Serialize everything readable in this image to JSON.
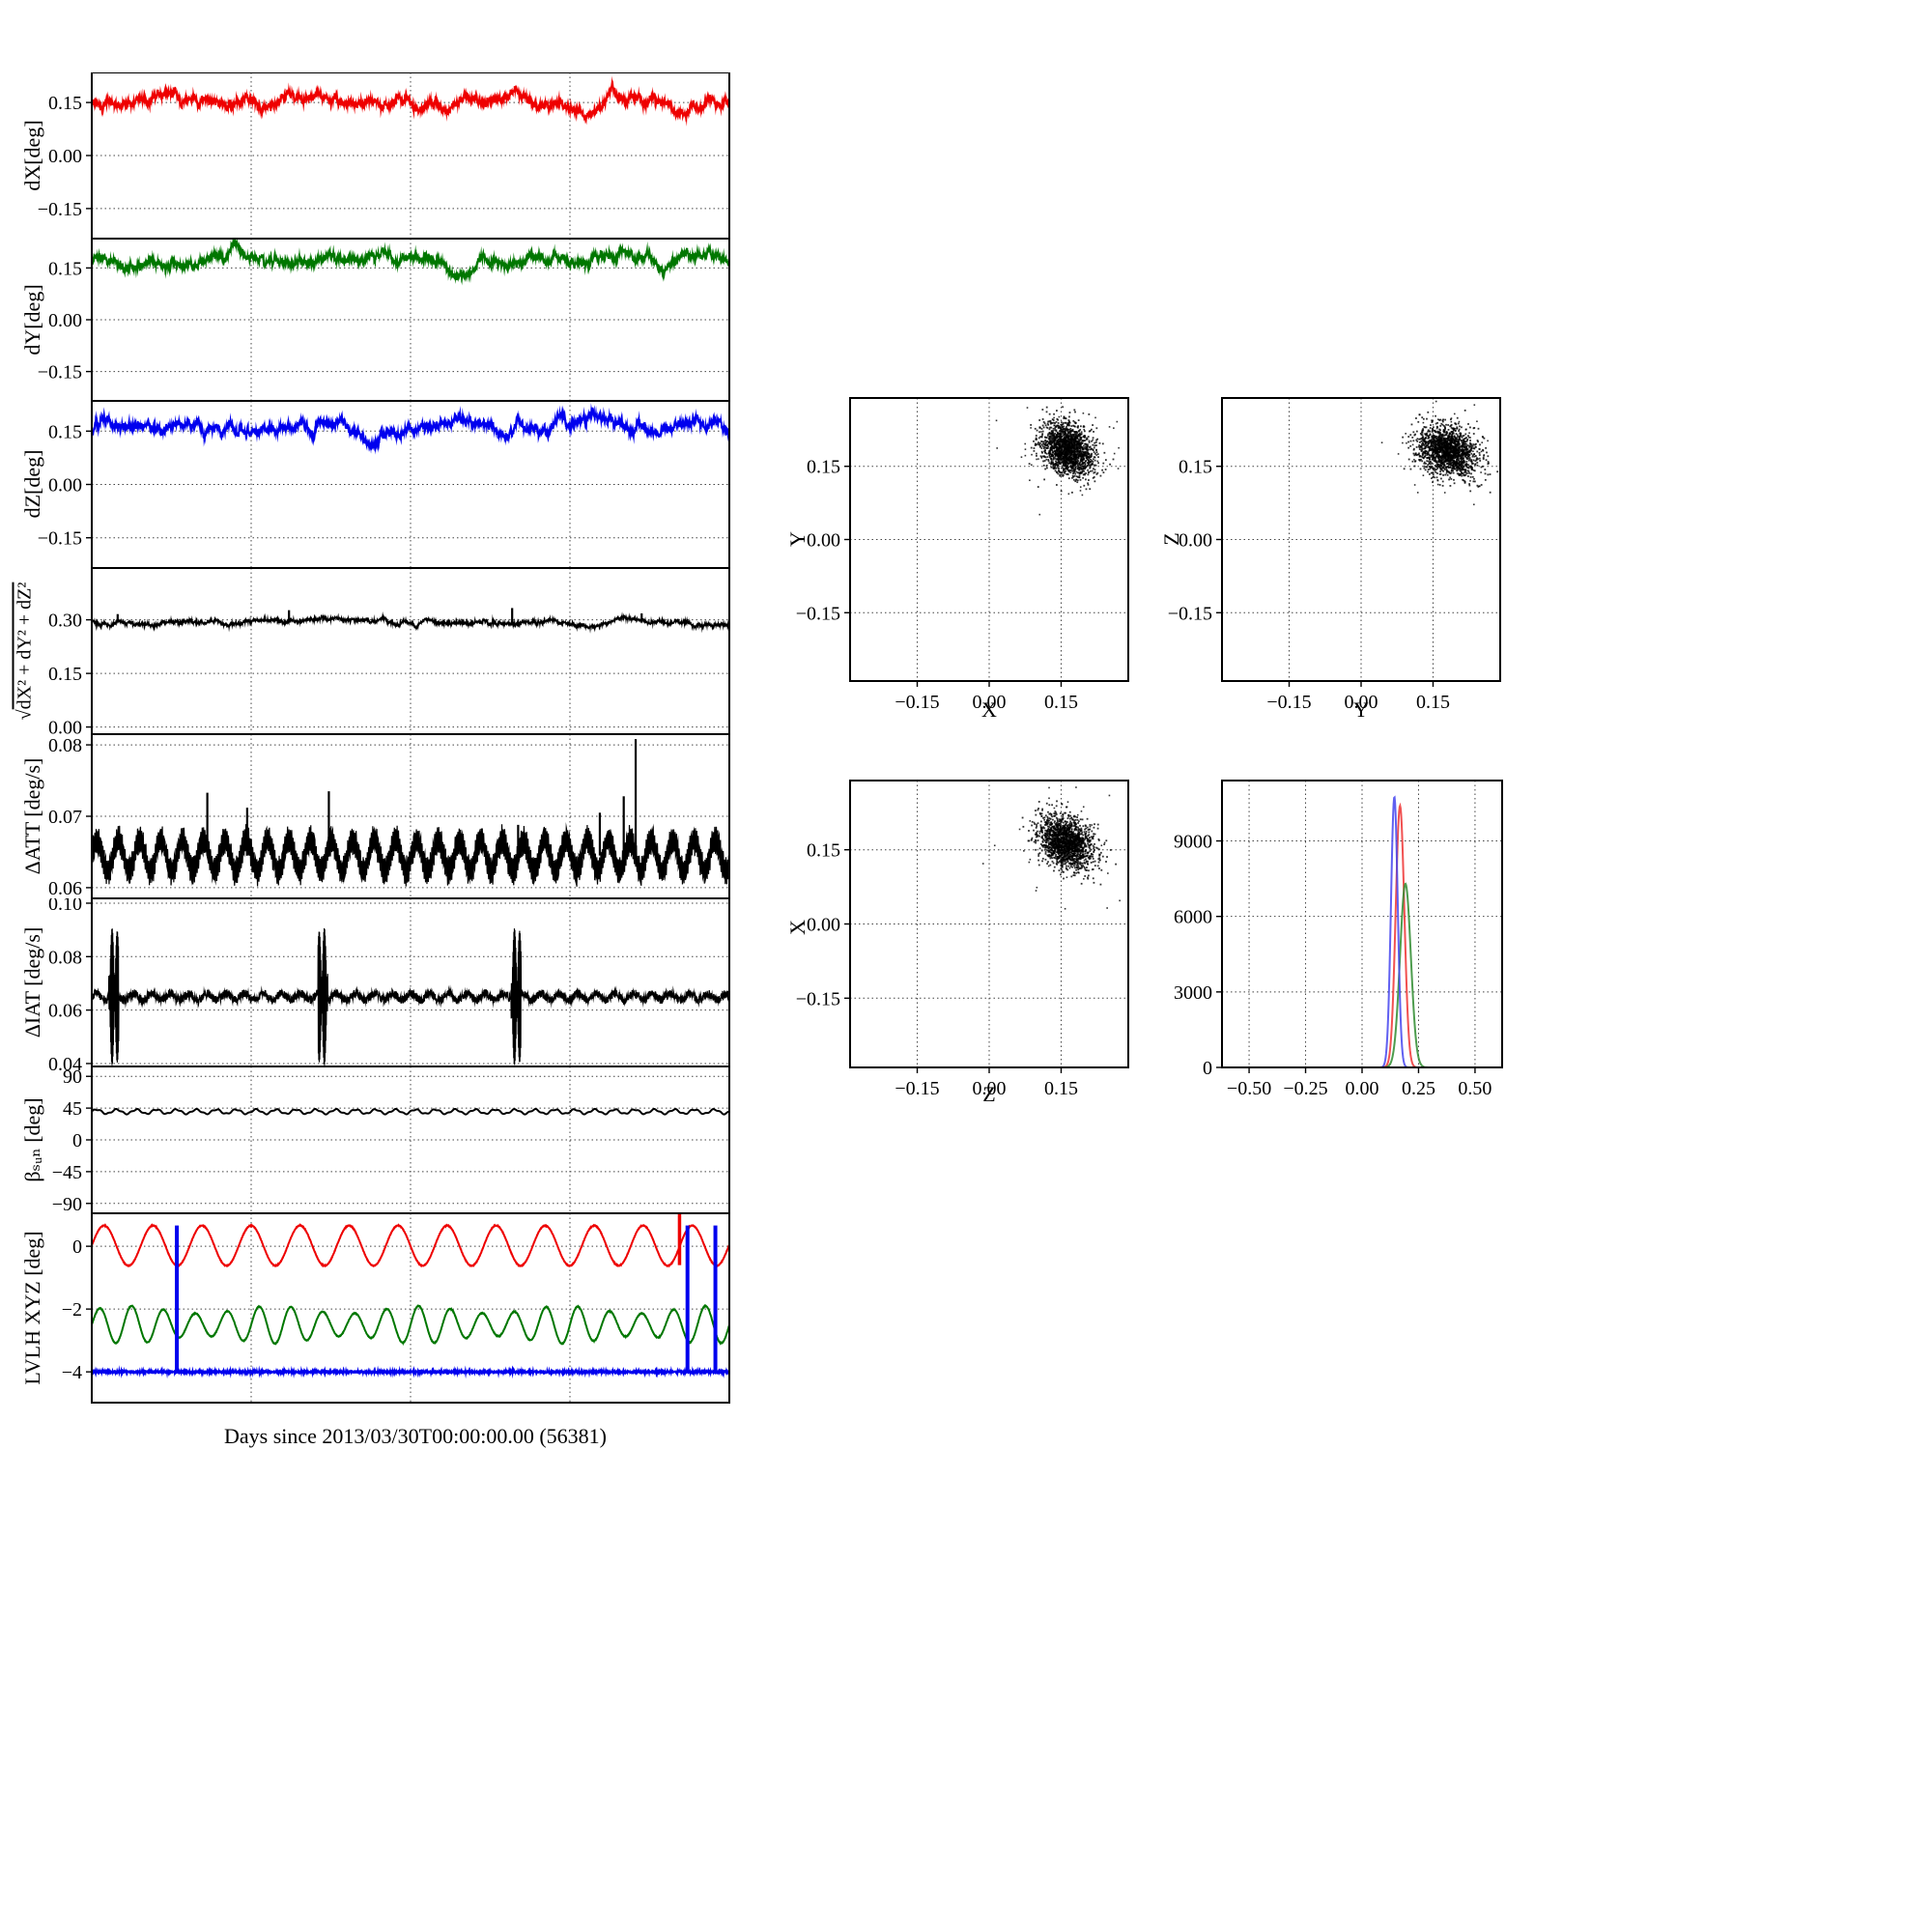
{
  "figure": {
    "background": "#ffffff"
  },
  "chart_data": {
    "type": "multi-panel",
    "description": "Attitude difference time series (dX,dY,dZ, magnitude, rates, beta angle, LVLH angles) with cross-axis scatter plots and component histogram",
    "time_axis": {
      "label": "Days since 2013/03/30T00:00:00.00 (56381)",
      "xlim": [
        0,
        32
      ],
      "grid_days": [
        8,
        16,
        24
      ]
    },
    "panels": [
      {
        "id": "dX",
        "kind": "timeseries",
        "ylabel": "dX[deg]",
        "xlim": [
          0,
          32
        ],
        "xgrid": [
          8,
          16,
          24
        ],
        "ylim": [
          -0.235,
          0.235
        ],
        "yticks": [
          -0.15,
          0.0,
          0.15
        ],
        "ytick_labels": [
          "−0.15",
          "0.00",
          "0.15"
        ],
        "series": [
          {
            "name": "dX",
            "type": "noisy",
            "color": "#ee0000",
            "baseline": 0.15,
            "wander": 0.01,
            "jitter": 0.014,
            "lw": 1.8
          }
        ]
      },
      {
        "id": "dY",
        "kind": "timeseries",
        "ylabel": "dY[deg]",
        "xlim": [
          0,
          32
        ],
        "xgrid": [
          8,
          16,
          24
        ],
        "ylim": [
          -0.235,
          0.235
        ],
        "yticks": [
          -0.15,
          0.0,
          0.15
        ],
        "ytick_labels": [
          "−0.15",
          "0.00",
          "0.15"
        ],
        "series": [
          {
            "name": "dY",
            "type": "noisy",
            "color": "#007700",
            "baseline": 0.168,
            "wander": 0.01,
            "jitter": 0.013,
            "lw": 1.8
          }
        ]
      },
      {
        "id": "dZ",
        "kind": "timeseries",
        "ylabel": "dZ[deg]",
        "xlim": [
          0,
          32
        ],
        "xgrid": [
          8,
          16,
          24
        ],
        "ylim": [
          -0.235,
          0.235
        ],
        "yticks": [
          -0.15,
          0.0,
          0.15
        ],
        "ytick_labels": [
          "−0.15",
          "0.00",
          "0.15"
        ],
        "series": [
          {
            "name": "dZ",
            "type": "noisy",
            "color": "#0000ee",
            "baseline": 0.157,
            "wander": 0.011,
            "jitter": 0.014,
            "lw": 1.8
          }
        ]
      },
      {
        "id": "mag",
        "kind": "timeseries",
        "ylabel": "√(dX²+dY²+dZ²)",
        "ylabel_parts": [
          "√",
          "dX² + dY² + dZ²"
        ],
        "xlim": [
          0,
          32
        ],
        "xgrid": [
          8,
          16,
          24
        ],
        "ylim": [
          -0.02,
          0.445
        ],
        "yticks": [
          0.0,
          0.15,
          0.3
        ],
        "ytick_labels": [
          "0.00",
          "0.15",
          "0.30"
        ],
        "series": [
          {
            "name": "magnitude",
            "type": "noisy",
            "color": "#000000",
            "baseline": 0.292,
            "wander": 0.004,
            "jitter": 0.005,
            "lw": 1.5,
            "spikes": [
              {
                "x": 1.3,
                "y": 0.316
              },
              {
                "x": 9.9,
                "y": 0.327
              },
              {
                "x": 21.1,
                "y": 0.333
              },
              {
                "x": 27.6,
                "y": 0.318
              }
            ]
          }
        ]
      },
      {
        "id": "datt",
        "kind": "timeseries",
        "ylabel": "ΔATT [deg/s]",
        "xlim": [
          0,
          32
        ],
        "xgrid": [
          8,
          16,
          24
        ],
        "ylim": [
          0.0585,
          0.0815
        ],
        "yticks": [
          0.06,
          0.07,
          0.08
        ],
        "ytick_labels": [
          "0.06",
          "0.07",
          "0.08"
        ],
        "series": [
          {
            "name": "delta_att",
            "type": "osc",
            "color": "#000000",
            "mean": 0.0645,
            "amp_slow": 0.0022,
            "period_slow": 1.07,
            "amp_fast": 0.0017,
            "period_fast": 0.069,
            "jitter": 0.0011,
            "lw": 1.2,
            "spikes": [
              {
                "x": 5.8,
                "y": 0.0733
              },
              {
                "x": 7.8,
                "y": 0.0712
              },
              {
                "x": 11.9,
                "y": 0.0735
              },
              {
                "x": 21.4,
                "y": 0.0688
              },
              {
                "x": 25.5,
                "y": 0.0705
              },
              {
                "x": 26.7,
                "y": 0.0728
              },
              {
                "x": 27.3,
                "y": 0.0808
              }
            ]
          }
        ]
      },
      {
        "id": "diat",
        "kind": "timeseries",
        "ylabel": "ΔIAT [deg/s]",
        "xlim": [
          0,
          32
        ],
        "xgrid": [
          8,
          16,
          24
        ],
        "ylim": [
          0.0389,
          0.1018
        ],
        "yticks": [
          0.04,
          0.06,
          0.08,
          0.1
        ],
        "ytick_labels": [
          "0.04",
          "0.06",
          "0.08",
          "0.10"
        ],
        "series": [
          {
            "name": "delta_iat",
            "type": "bursty",
            "color": "#000000",
            "mean": 0.065,
            "jitter": 0.0016,
            "burst_centers": [
              1.1,
              11.6,
              21.3
            ],
            "burst_halfwidth": 0.25,
            "burst_amp": 0.0265,
            "lw": 1.2
          }
        ]
      },
      {
        "id": "beta",
        "kind": "timeseries",
        "ylabel": "βₛᵤₙ [deg]",
        "xlim": [
          0,
          32
        ],
        "xgrid": [
          8,
          16,
          24
        ],
        "ylim": [
          -104,
          104
        ],
        "yticks": [
          -90,
          -45,
          0,
          45,
          90
        ],
        "ytick_labels": [
          "−90",
          "−45",
          "0",
          "45",
          "90"
        ],
        "series": [
          {
            "name": "beta_sun",
            "type": "wavy",
            "color": "#000000",
            "mean": 40,
            "amp": 3.0,
            "period": 1.0,
            "amp2": 0.9,
            "period2": 0.37,
            "lw": 2
          }
        ]
      },
      {
        "id": "lvlh",
        "kind": "timeseries",
        "ylabel": "LVLH XYZ [deg]",
        "xlim": [
          0,
          32
        ],
        "xgrid": [
          8,
          16,
          24
        ],
        "ylim": [
          -4.98,
          1.05
        ],
        "yticks": [
          -4,
          -2,
          0
        ],
        "ytick_labels": [
          "−4",
          "−2",
          "0"
        ],
        "series": [
          {
            "name": "lvlh_x",
            "type": "sine",
            "color": "#ee0000",
            "mean": 0.02,
            "amp": 0.64,
            "period": 2.46,
            "jitter": 0.02,
            "lw": 2,
            "spikes": [
              {
                "x": 29.5,
                "y": 1.02,
                "base": -0.6,
                "lw": 3.5
              }
            ]
          },
          {
            "name": "lvlh_y",
            "type": "sine",
            "color": "#007700",
            "mean": -2.5,
            "amp": 0.48,
            "period": 1.6,
            "mod": 0.12,
            "mod_period": 7.3,
            "jitter": 0.02,
            "lw": 2
          },
          {
            "name": "lvlh_z",
            "type": "flatline",
            "color": "#0000ee",
            "mean": -4.0,
            "jitter": 0.05,
            "lw": 2,
            "spikes": [
              {
                "x": 4.27,
                "y": 0.66,
                "base": -4.0,
                "lw": 4
              },
              {
                "x": 29.9,
                "y": 0.66,
                "base": -4.0,
                "lw": 4
              },
              {
                "x": 31.3,
                "y": 0.66,
                "base": -4.0,
                "lw": 4
              }
            ]
          }
        ]
      },
      {
        "id": "scatter_xy",
        "kind": "scatter",
        "xlabel": "X",
        "ylabel": "Y",
        "xlim": [
          -0.29,
          0.29
        ],
        "ylim": [
          -0.29,
          0.29
        ],
        "xticks": [
          -0.15,
          0.0,
          0.15
        ],
        "yticks": [
          -0.15,
          0.0,
          0.15
        ],
        "xtick_labels": [
          "−0.15",
          "0.00",
          "0.15"
        ],
        "ytick_labels": [
          "−0.15",
          "0.00",
          "0.15"
        ],
        "cluster": {
          "n": 1700,
          "center": [
            0.165,
            0.185
          ],
          "sd": [
            0.027,
            0.027
          ],
          "rho": -0.3,
          "color": "#000000"
        }
      },
      {
        "id": "scatter_yz",
        "kind": "scatter",
        "xlabel": "Y",
        "ylabel": "Z",
        "xlim": [
          -0.29,
          0.29
        ],
        "ylim": [
          -0.29,
          0.29
        ],
        "xticks": [
          -0.15,
          0.0,
          0.15
        ],
        "yticks": [
          -0.15,
          0.0,
          0.15
        ],
        "xtick_labels": [
          "−0.15",
          "0.00",
          "0.15"
        ],
        "ytick_labels": [
          "−0.15",
          "0.00",
          "0.15"
        ],
        "cluster": {
          "n": 1700,
          "center": [
            0.18,
            0.18
          ],
          "sd": [
            0.03,
            0.026
          ],
          "rho": -0.25,
          "color": "#000000"
        }
      },
      {
        "id": "scatter_zx",
        "kind": "scatter",
        "xlabel": "Z",
        "ylabel": "X",
        "xlim": [
          -0.29,
          0.29
        ],
        "ylim": [
          -0.29,
          0.29
        ],
        "xticks": [
          -0.15,
          0.0,
          0.15
        ],
        "yticks": [
          -0.15,
          0.0,
          0.15
        ],
        "xtick_labels": [
          "−0.15",
          "0.00",
          "0.15"
        ],
        "ytick_labels": [
          "−0.15",
          "0.00",
          "0.15"
        ],
        "cluster": {
          "n": 1700,
          "center": [
            0.16,
            0.165
          ],
          "sd": [
            0.028,
            0.026
          ],
          "rho": -0.3,
          "color": "#000000"
        }
      },
      {
        "id": "hist",
        "kind": "hist",
        "xlim": [
          -0.62,
          0.62
        ],
        "ylim": [
          0,
          11400
        ],
        "xticks": [
          -0.5,
          -0.25,
          0.0,
          0.25,
          0.5
        ],
        "xtick_labels": [
          "−0.50",
          "−0.25",
          "0.00",
          "0.25",
          "0.50"
        ],
        "yticks": [
          0,
          3000,
          6000,
          9000
        ],
        "ytick_labels": [
          "0",
          "3000",
          "6000",
          "9000"
        ],
        "series": [
          {
            "name": "dX",
            "color": "#ee3333",
            "center": 0.168,
            "sigma": 0.019,
            "peak": 10400
          },
          {
            "name": "dY",
            "color": "#2e8b2e",
            "center": 0.192,
            "sigma": 0.024,
            "peak": 7300
          },
          {
            "name": "dZ",
            "color": "#4444ee",
            "center": 0.143,
            "sigma": 0.015,
            "peak": 10750
          }
        ]
      }
    ]
  }
}
